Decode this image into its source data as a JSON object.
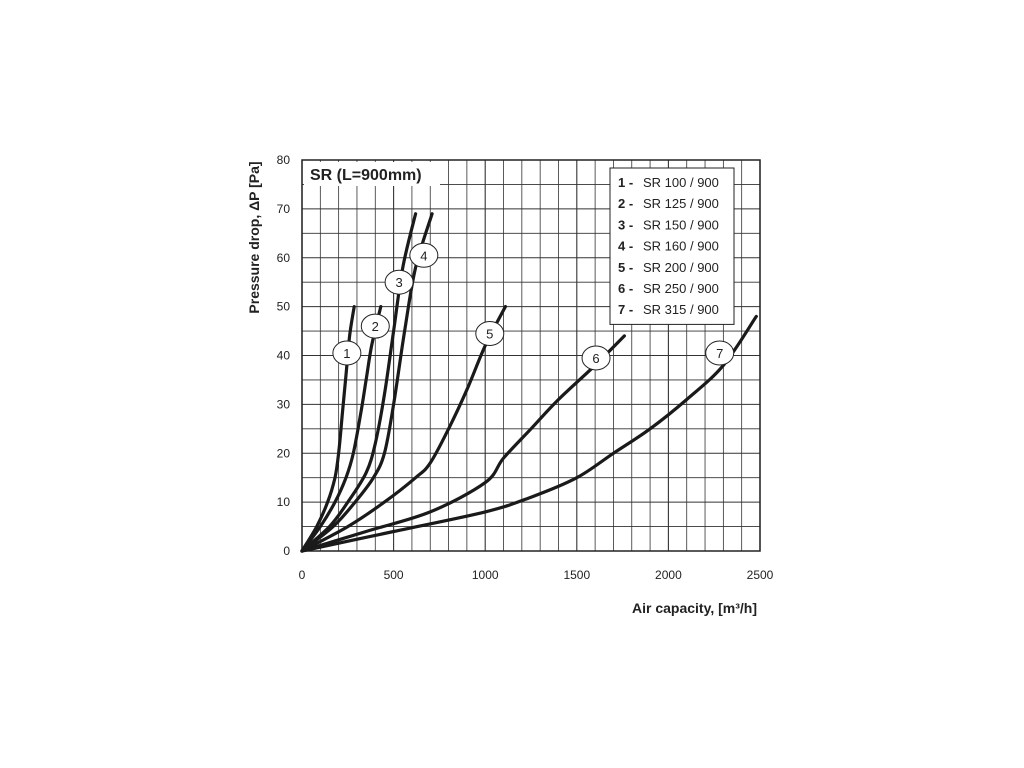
{
  "chart_data": {
    "type": "line",
    "title": "SR (L=900mm)",
    "xlabel": "Air capacity, [m³/h]",
    "ylabel": "Pressure drop, ΔP [Pa]",
    "xlim": [
      0,
      2500
    ],
    "ylim": [
      0,
      80
    ],
    "x_ticks": [
      "0",
      "500",
      "1000",
      "1500",
      "2000",
      "2500"
    ],
    "y_ticks": [
      "0",
      "10",
      "20",
      "30",
      "40",
      "50",
      "60",
      "70",
      "80"
    ],
    "grid": true,
    "legend_position": "top-right",
    "series": [
      {
        "id": "1",
        "name": "SR 100 / 900",
        "label_number": "1 -",
        "callout": "1",
        "points": [
          [
            0,
            0
          ],
          [
            80,
            5
          ],
          [
            140,
            10
          ],
          [
            180,
            15
          ],
          [
            200,
            20
          ],
          [
            220,
            28
          ],
          [
            240,
            36
          ],
          [
            260,
            44
          ],
          [
            285,
            50
          ]
        ]
      },
      {
        "id": "2",
        "name": "SR 125 / 900",
        "label_number": "2 -",
        "callout": "2",
        "points": [
          [
            0,
            0
          ],
          [
            100,
            5
          ],
          [
            180,
            10
          ],
          [
            240,
            15
          ],
          [
            280,
            20
          ],
          [
            320,
            28
          ],
          [
            350,
            35
          ],
          [
            380,
            42
          ],
          [
            430,
            50
          ]
        ]
      },
      {
        "id": "3",
        "name": "SR 150 / 900",
        "label_number": "3 -",
        "callout": "3",
        "points": [
          [
            0,
            0
          ],
          [
            150,
            5
          ],
          [
            250,
            10
          ],
          [
            350,
            16
          ],
          [
            400,
            22
          ],
          [
            450,
            32
          ],
          [
            500,
            45
          ],
          [
            550,
            58
          ],
          [
            620,
            69
          ]
        ]
      },
      {
        "id": "4",
        "name": "SR 160 / 900",
        "label_number": "4 -",
        "callout": "4",
        "points": [
          [
            0,
            0
          ],
          [
            170,
            5
          ],
          [
            290,
            10
          ],
          [
            390,
            15
          ],
          [
            450,
            20
          ],
          [
            500,
            30
          ],
          [
            560,
            45
          ],
          [
            620,
            58
          ],
          [
            710,
            69
          ]
        ]
      },
      {
        "id": "5",
        "name": "SR 200 / 900",
        "label_number": "5 -",
        "callout": "5",
        "points": [
          [
            0,
            0
          ],
          [
            250,
            5
          ],
          [
            450,
            10
          ],
          [
            620,
            15
          ],
          [
            700,
            18
          ],
          [
            800,
            25
          ],
          [
            900,
            33
          ],
          [
            1000,
            42
          ],
          [
            1110,
            50
          ]
        ]
      },
      {
        "id": "6",
        "name": "SR 250 / 900",
        "label_number": "6 -",
        "callout": "6",
        "points": [
          [
            0,
            0
          ],
          [
            350,
            4
          ],
          [
            700,
            8
          ],
          [
            1000,
            14
          ],
          [
            1100,
            19
          ],
          [
            1250,
            25
          ],
          [
            1400,
            31
          ],
          [
            1600,
            38
          ],
          [
            1760,
            44
          ]
        ]
      },
      {
        "id": "7",
        "name": "SR 315 / 900",
        "label_number": "7 -",
        "callout": "7",
        "points": [
          [
            0,
            0
          ],
          [
            500,
            4
          ],
          [
            1000,
            8
          ],
          [
            1250,
            11
          ],
          [
            1500,
            15
          ],
          [
            1700,
            20
          ],
          [
            1900,
            25
          ],
          [
            2100,
            31
          ],
          [
            2300,
            38
          ],
          [
            2480,
            48
          ]
        ]
      }
    ],
    "callout_positions": [
      {
        "id": "1",
        "x": 245,
        "y": 40.5
      },
      {
        "id": "2",
        "x": 400,
        "y": 46
      },
      {
        "id": "3",
        "x": 530,
        "y": 55
      },
      {
        "id": "4",
        "x": 665,
        "y": 60.5
      },
      {
        "id": "5",
        "x": 1025,
        "y": 44.5
      },
      {
        "id": "6",
        "x": 1605,
        "y": 39.5
      },
      {
        "id": "7",
        "x": 2280,
        "y": 40.5
      }
    ]
  }
}
